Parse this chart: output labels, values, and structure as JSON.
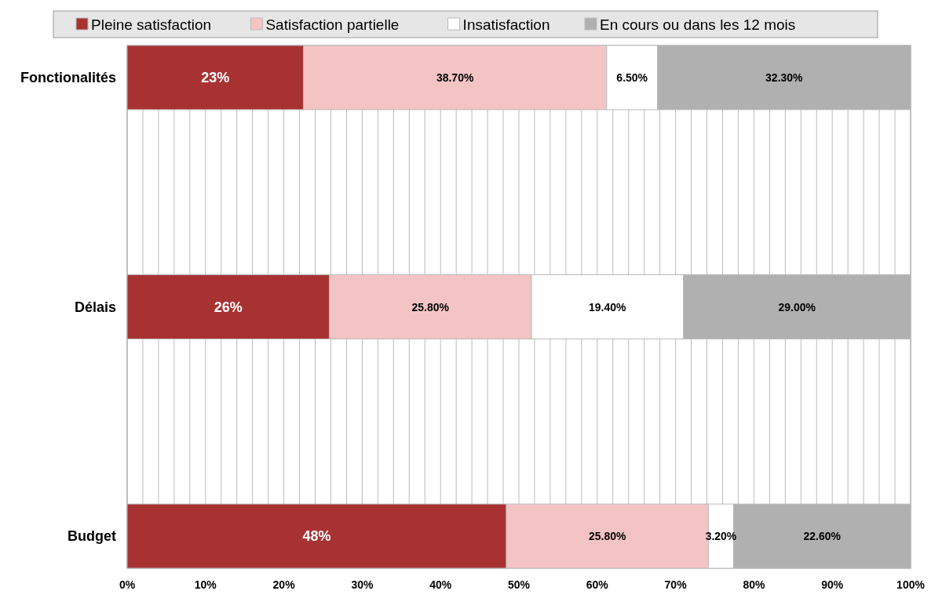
{
  "chart_data": {
    "type": "bar",
    "orientation": "horizontal",
    "stacked": true,
    "categories": [
      "Fonctionalités",
      "Délais",
      "Budget"
    ],
    "series": [
      {
        "name": "Pleine satisfaction",
        "color": "#a83232",
        "values": [
          22.5,
          25.8,
          48.4
        ],
        "value_labels": [
          "23%",
          "26%",
          "48%"
        ]
      },
      {
        "name": "Satisfaction partielle",
        "color": "#f4c4c4",
        "values": [
          38.7,
          25.8,
          25.8
        ],
        "value_labels": [
          "38.70%",
          "25.80%",
          "25.80%"
        ]
      },
      {
        "name": "Insatisfaction",
        "color": "#ffffff",
        "values": [
          6.5,
          19.4,
          3.2
        ],
        "value_labels": [
          "6.50%",
          "19.40%",
          "3.20%"
        ]
      },
      {
        "name": "En cours ou dans les 12 mois",
        "color": "#b0b0b0",
        "values": [
          32.3,
          29.0,
          22.6
        ],
        "value_labels": [
          "32.30%",
          "29.00%",
          "22.60%"
        ]
      }
    ],
    "xlim": [
      0,
      100
    ],
    "xticks": [
      {
        "value": 0,
        "label": "0%"
      },
      {
        "value": 2,
        "label": null
      },
      {
        "value": 4,
        "label": null
      },
      {
        "value": 6,
        "label": null
      },
      {
        "value": 8,
        "label": null
      },
      {
        "value": 10,
        "label": "10%"
      },
      {
        "value": 12,
        "label": null
      },
      {
        "value": 14,
        "label": null
      },
      {
        "value": 16,
        "label": null
      },
      {
        "value": 18,
        "label": null
      },
      {
        "value": 20,
        "label": "20%"
      },
      {
        "value": 22,
        "label": null
      },
      {
        "value": 24,
        "label": null
      },
      {
        "value": 26,
        "label": null
      },
      {
        "value": 28,
        "label": null
      },
      {
        "value": 30,
        "label": "30%"
      },
      {
        "value": 32,
        "label": null
      },
      {
        "value": 34,
        "label": null
      },
      {
        "value": 36,
        "label": null
      },
      {
        "value": 38,
        "label": null
      },
      {
        "value": 40,
        "label": "40%"
      },
      {
        "value": 42,
        "label": null
      },
      {
        "value": 44,
        "label": null
      },
      {
        "value": 46,
        "label": null
      },
      {
        "value": 48,
        "label": null
      },
      {
        "value": 50,
        "label": "50%"
      },
      {
        "value": 52,
        "label": null
      },
      {
        "value": 54,
        "label": null
      },
      {
        "value": 56,
        "label": null
      },
      {
        "value": 58,
        "label": null
      },
      {
        "value": 60,
        "label": "60%"
      },
      {
        "value": 62,
        "label": null
      },
      {
        "value": 64,
        "label": null
      },
      {
        "value": 66,
        "label": null
      },
      {
        "value": 68,
        "label": null
      },
      {
        "value": 70,
        "label": "70%"
      },
      {
        "value": 72,
        "label": null
      },
      {
        "value": 74,
        "label": null
      },
      {
        "value": 76,
        "label": null
      },
      {
        "value": 78,
        "label": null
      },
      {
        "value": 80,
        "label": "80%"
      },
      {
        "value": 82,
        "label": null
      },
      {
        "value": 84,
        "label": null
      },
      {
        "value": 86,
        "label": null
      },
      {
        "value": 88,
        "label": null
      },
      {
        "value": 90,
        "label": "90%"
      },
      {
        "value": 92,
        "label": null
      },
      {
        "value": 94,
        "label": null
      },
      {
        "value": 96,
        "label": null
      },
      {
        "value": 98,
        "label": null
      },
      {
        "value": 100,
        "label": "100%"
      }
    ],
    "grid": "x",
    "legend": "top"
  }
}
